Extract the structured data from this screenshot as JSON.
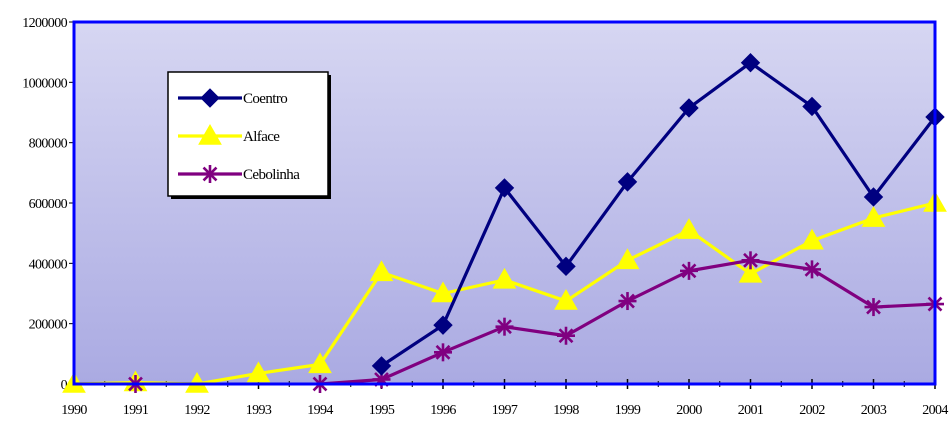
{
  "chart_data": {
    "type": "line",
    "title": "",
    "xlabel": "",
    "ylabel": "",
    "x": [
      "1990",
      "1991",
      "1992",
      "1993",
      "1994",
      "1995",
      "1996",
      "1997",
      "1998",
      "1999",
      "2000",
      "2001",
      "2002",
      "2003",
      "2004"
    ],
    "ylim": [
      0,
      1200000
    ],
    "yticks": [
      "0",
      "200000",
      "400000",
      "600000",
      "800000",
      "1000000",
      "1200000"
    ],
    "grid": false,
    "legend_position": "top-left",
    "series": [
      {
        "name": "Coentro",
        "color": "#000080",
        "marker": "diamond",
        "values": [
          null,
          null,
          null,
          null,
          null,
          60000,
          195000,
          650000,
          390000,
          670000,
          915000,
          1065000,
          920000,
          620000,
          885000
        ]
      },
      {
        "name": "Alface",
        "color": "#ffff00",
        "marker": "triangle",
        "values": [
          0,
          5000,
          0,
          35000,
          65000,
          370000,
          300000,
          345000,
          275000,
          410000,
          510000,
          365000,
          475000,
          550000,
          600000
        ]
      },
      {
        "name": "Cebolinha",
        "color": "#800080",
        "marker": "asterisk",
        "values": [
          null,
          0,
          null,
          null,
          0,
          15000,
          105000,
          190000,
          160000,
          275000,
          375000,
          410000,
          380000,
          255000,
          265000
        ]
      }
    ],
    "background_gradient": [
      "#aaaae2",
      "#d6d6f2"
    ],
    "frame_color": "#0000ff"
  }
}
